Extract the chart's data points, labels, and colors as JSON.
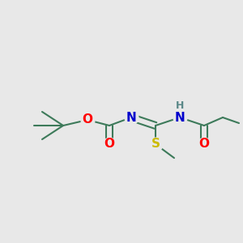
{
  "bg_color": "#e8e8e8",
  "bond_color": "#3d7a5a",
  "atom_colors": {
    "O": "#ff0000",
    "N": "#0000cc",
    "S": "#ccbb00",
    "H": "#5a8888",
    "C": "#3d7a5a"
  },
  "font_size": 11,
  "font_size_H": 9,
  "lw": 1.5,
  "dbo": 4.5
}
